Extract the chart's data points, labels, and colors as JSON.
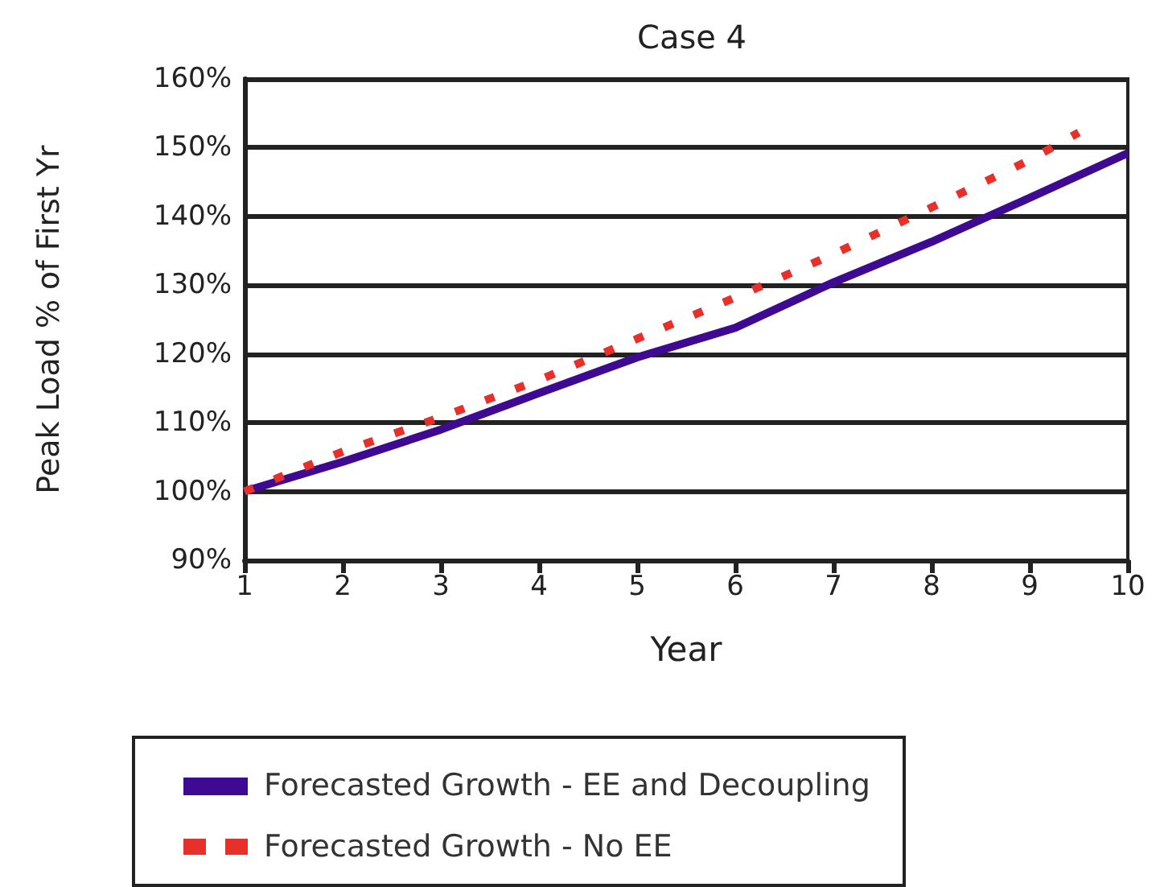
{
  "chart_data": {
    "type": "line",
    "title": "Case 4",
    "xlabel": "Year",
    "ylabel": "Peak Load % of First Yr",
    "x": [
      1,
      2,
      3,
      4,
      5,
      6,
      7,
      8,
      9,
      10
    ],
    "series": [
      {
        "name": "Forecasted Growth - EE and Decoupling",
        "color": "#3d0a91",
        "line_style": "solid",
        "values": [
          100,
          104.3,
          109,
          114.3,
          119.5,
          123.8,
          130.4,
          136.3,
          142.7,
          149.2
        ]
      },
      {
        "name": "Forecasted Growth - No EE",
        "color": "#e8302a",
        "line_style": "dashed",
        "x": [
          1,
          2,
          3,
          4,
          5,
          6,
          7,
          8,
          9,
          9.5
        ],
        "values": [
          100,
          105.8,
          110.8,
          116.2,
          122.2,
          128.2,
          134.5,
          141.3,
          148.2,
          152.2
        ]
      }
    ],
    "xlim": [
      1,
      10
    ],
    "xticks": [
      1,
      2,
      3,
      4,
      5,
      6,
      7,
      8,
      9,
      10
    ],
    "ylim": [
      90,
      160
    ],
    "yticks": [
      {
        "value": 90,
        "label": "90%"
      },
      {
        "value": 100,
        "label": "100%"
      },
      {
        "value": 110,
        "label": "110%"
      },
      {
        "value": 120,
        "label": "120%"
      },
      {
        "value": 130,
        "label": "130%"
      },
      {
        "value": 140,
        "label": "140%"
      },
      {
        "value": 150,
        "label": "150%"
      },
      {
        "value": 160,
        "label": "160%"
      }
    ],
    "grid": "y",
    "legend": "bottom",
    "marker": "none"
  }
}
